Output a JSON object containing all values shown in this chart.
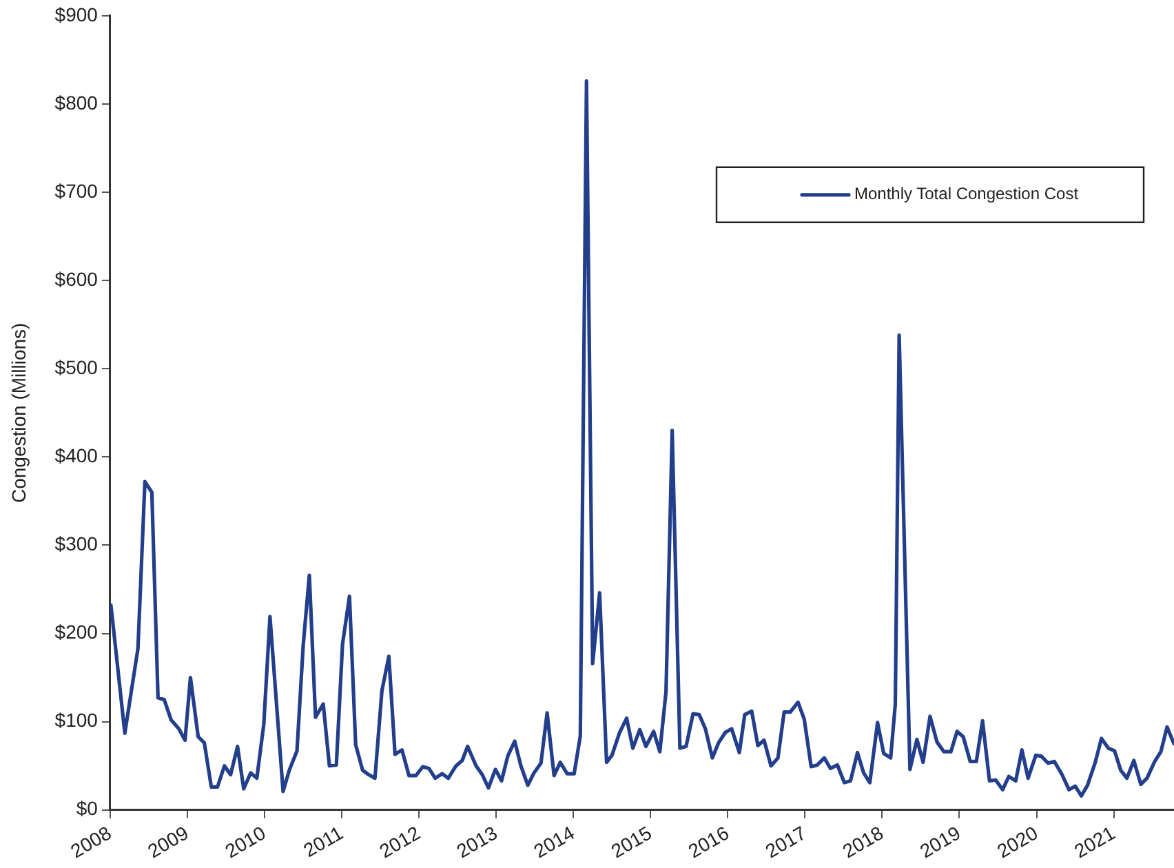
{
  "chart_data": {
    "type": "line",
    "ylabel": "Congestion (Millions)",
    "x": [
      2008.01,
      2008.19,
      2008.36,
      2008.45,
      2008.54,
      2008.62,
      2008.7,
      2008.79,
      2008.89,
      2008.97,
      2009.04,
      2009.14,
      2009.22,
      2009.31,
      2009.39,
      2009.48,
      2009.56,
      2009.65,
      2009.73,
      2009.82,
      2009.9,
      2009.99,
      2010.07,
      2010.24,
      2010.32,
      2010.42,
      2010.5,
      2010.58,
      2010.66,
      2010.76,
      2010.84,
      2010.93,
      2011.01,
      2011.1,
      2011.18,
      2011.27,
      2011.35,
      2011.43,
      2011.52,
      2011.61,
      2011.69,
      2011.78,
      2011.87,
      2011.96,
      2012.05,
      2012.13,
      2012.21,
      2012.3,
      2012.38,
      2012.48,
      2012.56,
      2012.63,
      2012.74,
      2012.82,
      2012.9,
      2012.99,
      2013.07,
      2013.15,
      2013.24,
      2013.32,
      2013.41,
      2013.49,
      2013.58,
      2013.66,
      2013.75,
      2013.83,
      2013.92,
      2014.01,
      2014.09,
      2014.17,
      2014.25,
      2014.34,
      2014.43,
      2014.5,
      2014.6,
      2014.69,
      2014.77,
      2014.86,
      2014.94,
      2015.04,
      2015.12,
      2015.2,
      2015.28,
      2015.38,
      2015.46,
      2015.55,
      2015.63,
      2015.71,
      2015.8,
      2015.88,
      2015.97,
      2016.05,
      2016.15,
      2016.22,
      2016.31,
      2016.39,
      2016.47,
      2016.56,
      2016.65,
      2016.73,
      2016.81,
      2016.91,
      2016.99,
      2017.08,
      2017.16,
      2017.25,
      2017.33,
      2017.42,
      2017.51,
      2017.59,
      2017.68,
      2017.76,
      2017.84,
      2017.94,
      2018.02,
      2018.11,
      2018.17,
      2018.22,
      2018.36,
      2018.45,
      2018.53,
      2018.62,
      2018.71,
      2018.8,
      2018.89,
      2018.97,
      2019.05,
      2019.14,
      2019.22,
      2019.3,
      2019.39,
      2019.47,
      2019.56,
      2019.64,
      2019.73,
      2019.81,
      2019.89,
      2019.99,
      2020.06,
      2020.15,
      2020.23,
      2020.33,
      2020.42,
      2020.5,
      2020.58,
      2020.66,
      2020.76,
      2020.84,
      2020.93,
      2021.01,
      2021.09,
      2021.17,
      2021.26,
      2021.35,
      2021.43,
      2021.53,
      2021.61,
      2021.69,
      2021.78
    ],
    "series": [
      {
        "name": "Monthly Total Congestion Cost",
        "color": "#233e8b",
        "values": [
          232,
          87,
          183,
          372,
          360,
          127,
          125,
          102,
          92,
          79,
          150,
          83,
          76,
          26,
          26,
          50,
          40,
          72,
          24,
          42,
          36,
          97,
          219,
          21,
          45,
          67,
          186,
          266,
          105,
          120,
          50,
          51,
          188,
          242,
          74,
          45,
          40,
          36,
          135,
          174,
          63,
          68,
          39,
          39,
          49,
          47,
          36,
          41,
          36,
          50,
          56,
          72,
          50,
          40,
          25,
          46,
          33,
          61,
          78,
          50,
          28,
          42,
          53,
          110,
          39,
          54,
          41,
          41,
          84,
          826,
          166,
          246,
          54,
          62,
          88,
          104,
          70,
          91,
          72,
          89,
          66,
          134,
          430,
          70,
          72,
          109,
          108,
          92,
          59,
          76,
          88,
          92,
          65,
          108,
          112,
          73,
          79,
          50,
          59,
          111,
          111,
          122,
          103,
          49,
          51,
          59,
          47,
          51,
          31,
          33,
          65,
          42,
          31,
          99,
          64,
          59,
          120,
          538,
          46,
          80,
          54,
          106,
          77,
          66,
          66,
          89,
          83,
          55,
          55,
          101,
          33,
          34,
          23,
          38,
          33,
          68,
          36,
          62,
          61,
          53,
          55,
          40,
          23,
          27,
          16,
          28,
          54,
          81,
          70,
          67,
          45,
          36,
          56,
          29,
          36,
          55,
          66,
          94,
          75
        ]
      }
    ],
    "xlim": [
      2008,
      2021.78
    ],
    "xticks": [
      2008,
      2009,
      2010,
      2011,
      2012,
      2013,
      2014,
      2015,
      2016,
      2017,
      2018,
      2019,
      2020,
      2021
    ],
    "ylim": [
      0,
      900
    ],
    "yticks": [
      {
        "value": 0,
        "label": "$0"
      },
      {
        "value": 100,
        "label": "$100"
      },
      {
        "value": 200,
        "label": "$200"
      },
      {
        "value": 300,
        "label": "$300"
      },
      {
        "value": 400,
        "label": "$400"
      },
      {
        "value": 500,
        "label": "$500"
      },
      {
        "value": 600,
        "label": "$600"
      },
      {
        "value": 700,
        "label": "$700"
      },
      {
        "value": 800,
        "label": "$800"
      },
      {
        "value": 900,
        "label": "$900"
      }
    ],
    "grid": false,
    "legend": "top right",
    "marker": "none",
    "line_style": "solid"
  }
}
